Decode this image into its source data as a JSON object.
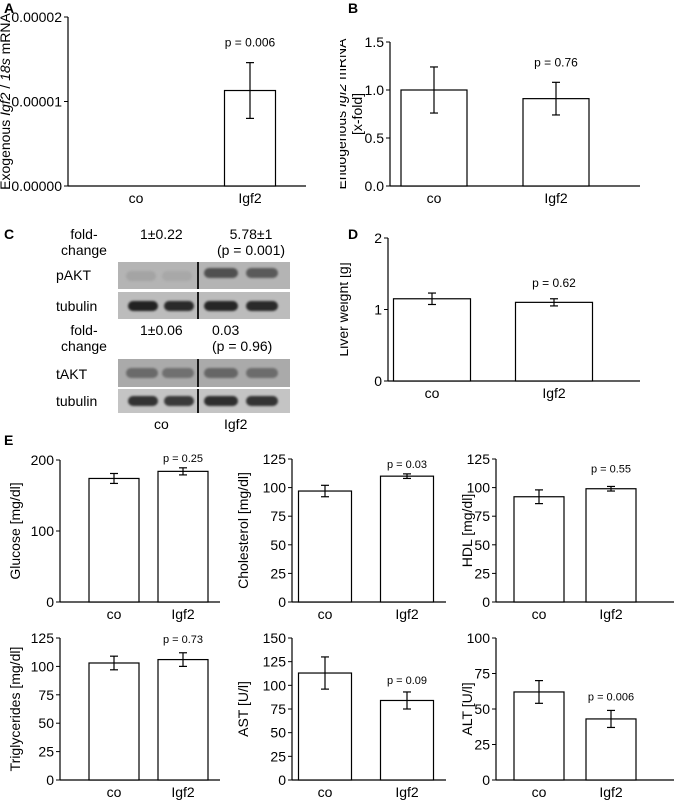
{
  "panel_letters": {
    "A": "A",
    "B": "B",
    "C": "C",
    "D": "D",
    "E": "E"
  },
  "western_blot": {
    "fold_label_1a": "fold-",
    "fold_label_1b": "change",
    "pakt_co": "1±0.22",
    "pakt_igf2_a": "5.78±1",
    "pakt_igf2_b": "(p = 0.001)",
    "row_pakt": "pAKT",
    "row_tubulin": "tubulin",
    "fold_label_2a": "fold-",
    "fold_label_2b": "change",
    "takt_co": "1±0.06",
    "takt_igf2_a": "0.03",
    "takt_igf2_b": "(p = 0.96)",
    "row_takt": "tAKT",
    "row_tubulin2": "tubulin",
    "lane_co": "co",
    "lane_igf2": "Igf2"
  },
  "chart_data": [
    {
      "id": "A",
      "type": "bar",
      "categories": [
        "co",
        "Igf2"
      ],
      "values": [
        0.0,
        1.13e-05
      ],
      "errors": [
        0,
        3.3e-06
      ],
      "ylabel": "Exogenous Igf2 / 18s mRNA",
      "ylim": [
        0,
        2e-05
      ],
      "yticks": [
        "0.00000",
        "0.00001",
        "0.00002"
      ],
      "yticks_values": [
        0,
        1e-05,
        2e-05
      ],
      "p_label": "p = 0.006"
    },
    {
      "id": "B",
      "type": "bar",
      "categories": [
        "co",
        "Igf2"
      ],
      "values": [
        1.0,
        0.91
      ],
      "errors": [
        0.24,
        0.17
      ],
      "ylabel": "Endogenous Igf2 mRNA [x-fold]",
      "ylim": [
        0,
        1.5
      ],
      "yticks": [
        "0.0",
        "0.5",
        "1.0",
        "1.5"
      ],
      "yticks_values": [
        0,
        0.5,
        1.0,
        1.5
      ],
      "p_label": "p = 0.76"
    },
    {
      "id": "D",
      "type": "bar",
      "categories": [
        "co",
        "Igf2"
      ],
      "values": [
        1.15,
        1.1
      ],
      "errors": [
        0.08,
        0.05
      ],
      "ylabel": "Liver weight [g]",
      "ylim": [
        0,
        2
      ],
      "yticks": [
        "0",
        "1",
        "2"
      ],
      "yticks_values": [
        0,
        1,
        2
      ],
      "p_label": "p = 0.62"
    },
    {
      "id": "E1",
      "type": "bar",
      "categories": [
        "co",
        "Igf2"
      ],
      "values": [
        174,
        184
      ],
      "errors": [
        7,
        5
      ],
      "ylabel": "Glucose [mg/dl]",
      "ylim": [
        0,
        200
      ],
      "yticks": [
        "0",
        "100",
        "200"
      ],
      "yticks_values": [
        0,
        100,
        200
      ],
      "p_label": "p = 0.25"
    },
    {
      "id": "E2",
      "type": "bar",
      "categories": [
        "co",
        "Igf2"
      ],
      "values": [
        97,
        110
      ],
      "errors": [
        5,
        2
      ],
      "ylabel": "Cholesterol [mg/dl]",
      "ylim": [
        0,
        125
      ],
      "yticks": [
        "0",
        "25",
        "50",
        "75",
        "100",
        "125"
      ],
      "yticks_values": [
        0,
        25,
        50,
        75,
        100,
        125
      ],
      "p_label": "p = 0.03"
    },
    {
      "id": "E3",
      "type": "bar",
      "categories": [
        "co",
        "Igf2"
      ],
      "values": [
        92,
        99
      ],
      "errors": [
        6,
        2
      ],
      "ylabel": "HDL [mg/dl]",
      "ylim": [
        0,
        125
      ],
      "yticks": [
        "0",
        "25",
        "50",
        "75",
        "100",
        "125"
      ],
      "yticks_values": [
        0,
        25,
        50,
        75,
        100,
        125
      ],
      "p_label": "p = 0.55"
    },
    {
      "id": "E4",
      "type": "bar",
      "categories": [
        "co",
        "Igf2"
      ],
      "values": [
        103,
        106
      ],
      "errors": [
        6,
        6
      ],
      "ylabel": "Triglycerides [mg/dl]",
      "ylim": [
        0,
        125
      ],
      "yticks": [
        "0",
        "25",
        "50",
        "75",
        "100",
        "125"
      ],
      "yticks_values": [
        0,
        25,
        50,
        75,
        100,
        125
      ],
      "p_label": "p = 0.73"
    },
    {
      "id": "E5",
      "type": "bar",
      "categories": [
        "co",
        "Igf2"
      ],
      "values": [
        113,
        84
      ],
      "errors": [
        17,
        9
      ],
      "ylabel": "AST [U/l]",
      "ylim": [
        0,
        150
      ],
      "yticks": [
        "0",
        "25",
        "50",
        "75",
        "100",
        "125",
        "150"
      ],
      "yticks_values": [
        0,
        25,
        50,
        75,
        100,
        125,
        150
      ],
      "p_label": "p = 0.09"
    },
    {
      "id": "E6",
      "type": "bar",
      "categories": [
        "co",
        "Igf2"
      ],
      "values": [
        62,
        43
      ],
      "errors": [
        8,
        6
      ],
      "ylabel": "ALT [U/l]",
      "ylim": [
        0,
        100
      ],
      "yticks": [
        "0",
        "25",
        "50",
        "75",
        "100"
      ],
      "yticks_values": [
        0,
        25,
        50,
        75,
        100
      ],
      "p_label": "p = 0.006"
    }
  ]
}
